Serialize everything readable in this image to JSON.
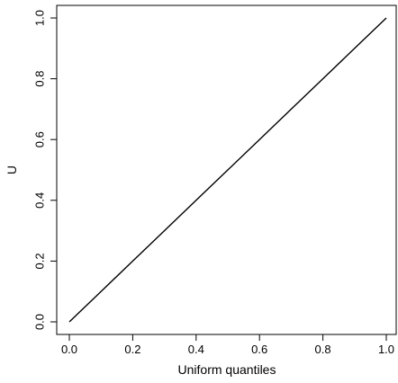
{
  "chart_data": {
    "type": "line",
    "title": "",
    "xlabel": "Uniform quantiles",
    "ylabel": "U",
    "xlim": [
      0,
      1
    ],
    "ylim": [
      0,
      1
    ],
    "x_ticks": [
      0.0,
      0.2,
      0.4,
      0.6,
      0.8,
      1.0
    ],
    "y_ticks": [
      0.0,
      0.2,
      0.4,
      0.6,
      0.8,
      1.0
    ],
    "x_tick_labels": [
      "0.0",
      "0.2",
      "0.4",
      "0.6",
      "0.8",
      "1.0"
    ],
    "y_tick_labels": [
      "0.0",
      "0.2",
      "0.4",
      "0.6",
      "0.8",
      "1.0"
    ],
    "grid": false,
    "legend": "none",
    "series": [
      {
        "x": [
          0.0,
          0.1,
          0.2,
          0.3,
          0.4,
          0.5,
          0.6,
          0.7,
          0.8,
          0.9,
          1.0
        ],
        "y": [
          0.0,
          0.1,
          0.2,
          0.3,
          0.4,
          0.5,
          0.6,
          0.7,
          0.8,
          0.9,
          1.0
        ],
        "color": "#000000"
      }
    ]
  }
}
